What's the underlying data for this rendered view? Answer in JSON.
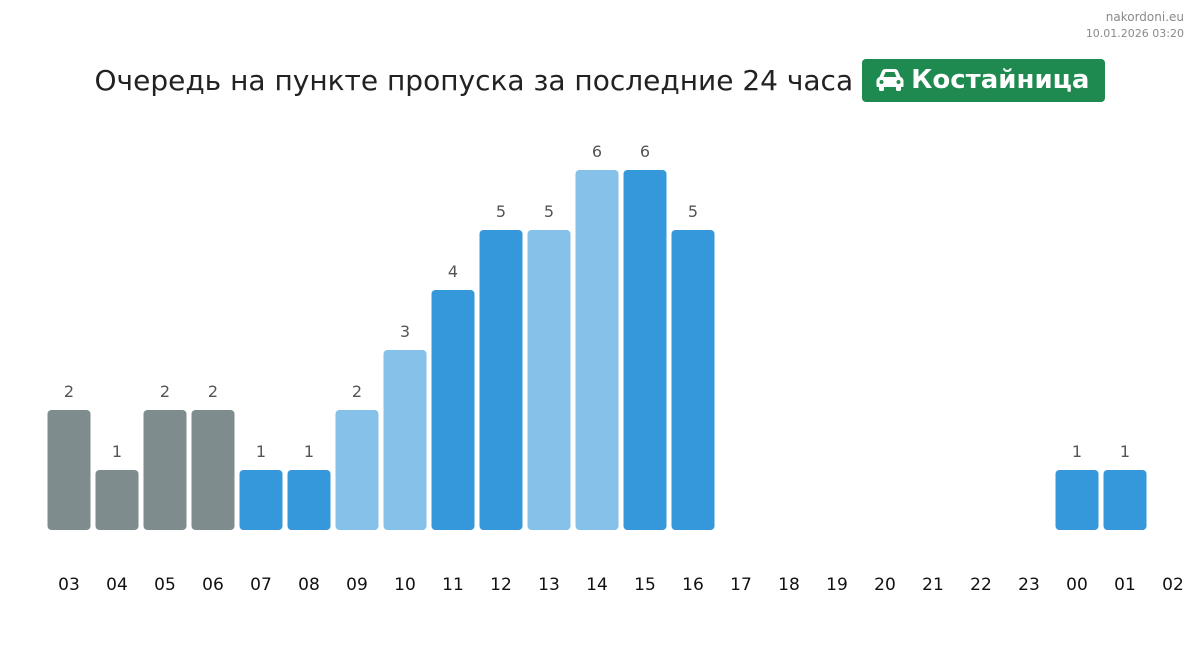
{
  "site": {
    "domain": "nakordoni.eu",
    "timestamp": "10.01.2026 03:20"
  },
  "header": {
    "title": "Очередь на пункте пропуска за последние 24 часа",
    "badge_label": "Костайница",
    "badge_icon": "car-icon"
  },
  "colors": {
    "past_night": "#7f8c8d",
    "normal": "#3498db",
    "light": "#85c1e9",
    "badge": "#1e8a50"
  },
  "chart_data": {
    "type": "bar",
    "title": "Очередь на пункте пропуска за последние 24 часа",
    "xlabel": "",
    "ylabel": "",
    "categories": [
      "03",
      "04",
      "05",
      "06",
      "07",
      "08",
      "09",
      "10",
      "11",
      "12",
      "13",
      "14",
      "15",
      "16",
      "17",
      "18",
      "19",
      "20",
      "21",
      "22",
      "23",
      "00",
      "01",
      "02"
    ],
    "values": [
      2,
      1,
      2,
      2,
      1,
      1,
      2,
      3,
      4,
      5,
      5,
      6,
      6,
      5,
      null,
      null,
      null,
      null,
      null,
      null,
      null,
      1,
      1,
      null
    ],
    "bar_color_keys": [
      "past_night",
      "past_night",
      "past_night",
      "past_night",
      "normal",
      "normal",
      "light",
      "light",
      "normal",
      "normal",
      "light",
      "light",
      "normal",
      "normal",
      null,
      null,
      null,
      null,
      null,
      null,
      null,
      "normal",
      "normal",
      null
    ],
    "ylim": [
      0,
      6
    ],
    "grid": false,
    "data_labels": true
  }
}
